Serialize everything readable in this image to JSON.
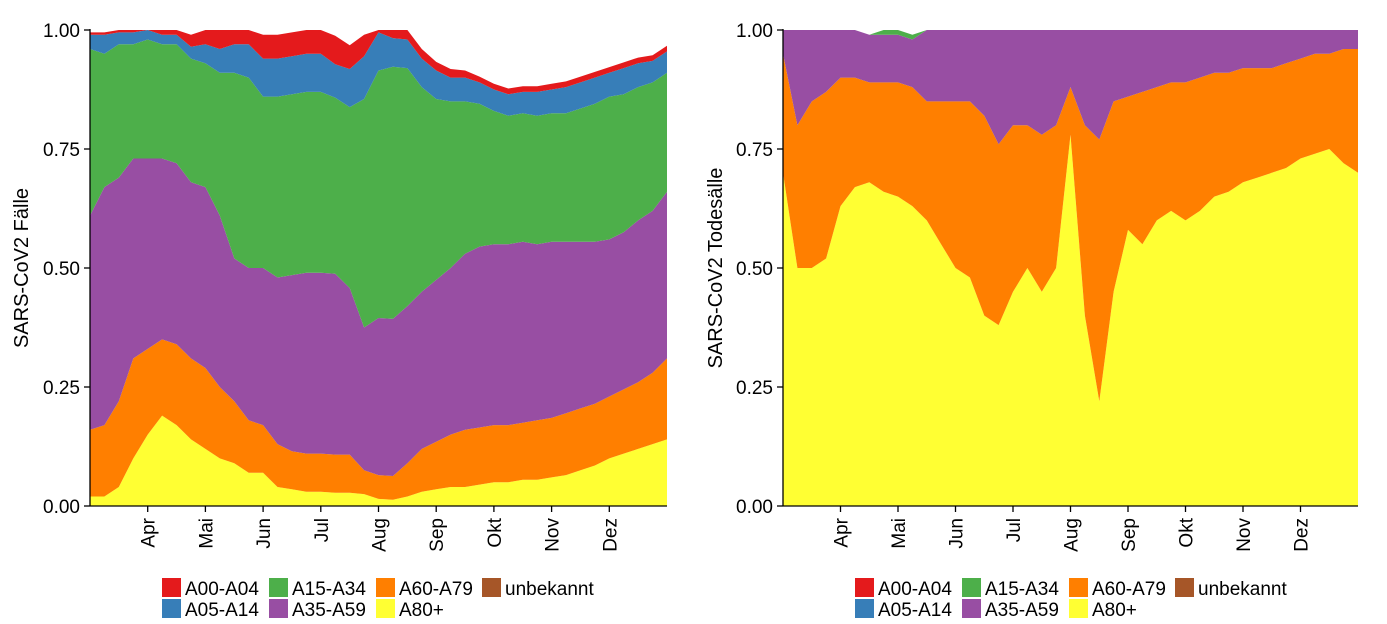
{
  "colors": {
    "A00-A04": "#e41a1c",
    "A05-A14": "#377eb8",
    "A15-A34": "#4daf4a",
    "A35-A59": "#984ea3",
    "A60-A79": "#ff7f00",
    "A80+": "#ffff33",
    "unbekannt": "#a65628"
  },
  "chart_data": [
    {
      "type": "area",
      "stacking": "fill",
      "ylabel": "SARS-CoV2 Fälle",
      "xlabel": "",
      "ylim": [
        0,
        1
      ],
      "yticks": [
        "0.00",
        "0.25",
        "0.50",
        "0.75",
        "1.00"
      ],
      "ytick_values": [
        0,
        0.25,
        0.5,
        0.75,
        1
      ],
      "xticks": [
        "Apr",
        "Mai",
        "Jun",
        "Jul",
        "Aug",
        "Sep",
        "Okt",
        "Nov",
        "Dez"
      ],
      "xtick_positions": [
        1,
        2,
        3,
        4,
        5,
        6,
        7,
        8,
        9
      ],
      "xlim": [
        0,
        10
      ],
      "x": [
        0,
        0.25,
        0.5,
        0.75,
        1,
        1.25,
        1.5,
        1.75,
        2,
        2.25,
        2.5,
        2.75,
        3,
        3.25,
        3.5,
        3.75,
        4,
        4.25,
        4.5,
        4.75,
        5,
        5.25,
        5.5,
        5.75,
        6,
        6.25,
        6.5,
        6.75,
        7,
        7.25,
        7.5,
        7.75,
        8,
        8.25,
        8.5,
        8.75,
        9,
        9.25,
        9.5,
        9.75,
        10
      ],
      "series": [
        {
          "name": "A80+",
          "values": [
            0.02,
            0.02,
            0.04,
            0.1,
            0.15,
            0.19,
            0.17,
            0.14,
            0.12,
            0.1,
            0.09,
            0.07,
            0.07,
            0.04,
            0.035,
            0.03,
            0.03,
            0.028,
            0.028,
            0.025,
            0.015,
            0.013,
            0.02,
            0.03,
            0.035,
            0.04,
            0.04,
            0.045,
            0.05,
            0.05,
            0.055,
            0.055,
            0.06,
            0.065,
            0.075,
            0.085,
            0.1,
            0.11,
            0.12,
            0.13,
            0.14
          ]
        },
        {
          "name": "A60-A79",
          "values": [
            0.14,
            0.15,
            0.18,
            0.21,
            0.18,
            0.16,
            0.17,
            0.17,
            0.17,
            0.15,
            0.13,
            0.11,
            0.1,
            0.09,
            0.08,
            0.08,
            0.08,
            0.08,
            0.08,
            0.05,
            0.05,
            0.05,
            0.07,
            0.09,
            0.1,
            0.11,
            0.12,
            0.12,
            0.12,
            0.12,
            0.12,
            0.125,
            0.125,
            0.13,
            0.13,
            0.13,
            0.13,
            0.135,
            0.14,
            0.15,
            0.17
          ]
        },
        {
          "name": "A35-A59",
          "values": [
            0.45,
            0.5,
            0.47,
            0.42,
            0.4,
            0.38,
            0.38,
            0.37,
            0.38,
            0.36,
            0.3,
            0.32,
            0.33,
            0.35,
            0.37,
            0.38,
            0.38,
            0.38,
            0.35,
            0.3,
            0.33,
            0.33,
            0.33,
            0.33,
            0.34,
            0.35,
            0.37,
            0.38,
            0.38,
            0.38,
            0.38,
            0.37,
            0.37,
            0.36,
            0.35,
            0.34,
            0.33,
            0.33,
            0.34,
            0.34,
            0.35
          ]
        },
        {
          "name": "A15-A34",
          "values": [
            0.35,
            0.28,
            0.28,
            0.24,
            0.25,
            0.24,
            0.25,
            0.26,
            0.26,
            0.3,
            0.39,
            0.4,
            0.36,
            0.38,
            0.38,
            0.38,
            0.38,
            0.37,
            0.38,
            0.48,
            0.52,
            0.53,
            0.5,
            0.43,
            0.38,
            0.35,
            0.32,
            0.3,
            0.28,
            0.27,
            0.27,
            0.27,
            0.27,
            0.27,
            0.28,
            0.29,
            0.3,
            0.29,
            0.28,
            0.27,
            0.25
          ]
        },
        {
          "name": "A05-A14",
          "values": [
            0.03,
            0.04,
            0.025,
            0.025,
            0.02,
            0.02,
            0.02,
            0.025,
            0.04,
            0.05,
            0.06,
            0.07,
            0.08,
            0.08,
            0.08,
            0.08,
            0.08,
            0.07,
            0.08,
            0.09,
            0.08,
            0.06,
            0.06,
            0.06,
            0.06,
            0.05,
            0.05,
            0.045,
            0.045,
            0.045,
            0.045,
            0.05,
            0.05,
            0.055,
            0.055,
            0.055,
            0.05,
            0.055,
            0.05,
            0.045,
            0.045
          ]
        },
        {
          "name": "A00-A04",
          "values": [
            0.005,
            0.005,
            0.005,
            0.005,
            0.005,
            0.01,
            0.01,
            0.025,
            0.03,
            0.04,
            0.045,
            0.05,
            0.05,
            0.05,
            0.05,
            0.05,
            0.05,
            0.06,
            0.05,
            0.045,
            0.035,
            0.03,
            0.025,
            0.02,
            0.018,
            0.018,
            0.015,
            0.012,
            0.012,
            0.012,
            0.012,
            0.012,
            0.012,
            0.012,
            0.012,
            0.012,
            0.012,
            0.012,
            0.012,
            0.012,
            0.012
          ]
        },
        {
          "name": "unbekannt",
          "values": [
            0,
            0,
            0,
            0,
            0,
            0,
            0,
            0,
            0,
            0,
            0,
            0,
            0,
            0,
            0,
            0,
            0,
            0,
            0,
            0,
            0,
            0,
            0,
            0,
            0,
            0,
            0,
            0,
            0,
            0,
            0,
            0,
            0,
            0,
            0,
            0,
            0,
            0,
            0,
            0,
            0
          ]
        }
      ]
    },
    {
      "type": "area",
      "stacking": "fill",
      "ylabel": "SARS-CoV2 Todesälle",
      "xlabel": "",
      "ylim": [
        0,
        1
      ],
      "yticks": [
        "0.00",
        "0.25",
        "0.50",
        "0.75",
        "1.00"
      ],
      "ytick_values": [
        0,
        0.25,
        0.5,
        0.75,
        1
      ],
      "xticks": [
        "Apr",
        "Mai",
        "Jun",
        "Jul",
        "Aug",
        "Sep",
        "Okt",
        "Nov",
        "Dez"
      ],
      "xtick_positions": [
        1,
        2,
        3,
        4,
        5,
        6,
        7,
        8,
        9
      ],
      "xlim": [
        0,
        10
      ],
      "x": [
        0,
        0.25,
        0.5,
        0.75,
        1,
        1.25,
        1.5,
        1.75,
        2,
        2.25,
        2.5,
        2.75,
        3,
        3.25,
        3.5,
        3.75,
        4,
        4.25,
        4.5,
        4.75,
        5,
        5.25,
        5.5,
        5.75,
        6,
        6.25,
        6.5,
        6.75,
        7,
        7.25,
        7.5,
        7.75,
        8,
        8.25,
        8.5,
        8.75,
        9,
        9.25,
        9.5,
        9.75,
        10
      ],
      "series": [
        {
          "name": "A80+",
          "values": [
            0.7,
            0.5,
            0.5,
            0.52,
            0.63,
            0.67,
            0.68,
            0.66,
            0.65,
            0.63,
            0.6,
            0.55,
            0.5,
            0.48,
            0.4,
            0.38,
            0.45,
            0.5,
            0.45,
            0.5,
            0.78,
            0.4,
            0.22,
            0.45,
            0.58,
            0.55,
            0.6,
            0.62,
            0.6,
            0.62,
            0.65,
            0.66,
            0.68,
            0.69,
            0.7,
            0.71,
            0.73,
            0.74,
            0.75,
            0.72,
            0.7
          ]
        },
        {
          "name": "A60-A79",
          "values": [
            0.25,
            0.3,
            0.35,
            0.35,
            0.27,
            0.23,
            0.21,
            0.23,
            0.24,
            0.25,
            0.25,
            0.3,
            0.35,
            0.37,
            0.42,
            0.38,
            0.35,
            0.3,
            0.33,
            0.3,
            0.1,
            0.4,
            0.55,
            0.4,
            0.28,
            0.32,
            0.28,
            0.27,
            0.29,
            0.28,
            0.26,
            0.25,
            0.24,
            0.23,
            0.22,
            0.22,
            0.21,
            0.21,
            0.2,
            0.24,
            0.26
          ]
        },
        {
          "name": "A35-A59",
          "values": [
            0.05,
            0.2,
            0.15,
            0.13,
            0.1,
            0.1,
            0.1,
            0.1,
            0.1,
            0.1,
            0.15,
            0.15,
            0.15,
            0.15,
            0.18,
            0.24,
            0.2,
            0.2,
            0.22,
            0.2,
            0.12,
            0.2,
            0.23,
            0.15,
            0.14,
            0.13,
            0.12,
            0.11,
            0.11,
            0.1,
            0.09,
            0.09,
            0.08,
            0.08,
            0.08,
            0.07,
            0.06,
            0.05,
            0.05,
            0.04,
            0.04
          ]
        },
        {
          "name": "A15-A34",
          "values": [
            0,
            0,
            0,
            0,
            0,
            0,
            0,
            0.01,
            0.01,
            0.01,
            0,
            0,
            0,
            0,
            0,
            0,
            0,
            0,
            0,
            0,
            0,
            0,
            0,
            0,
            0,
            0,
            0,
            0,
            0,
            0,
            0,
            0,
            0,
            0,
            0,
            0,
            0,
            0,
            0,
            0,
            0
          ]
        },
        {
          "name": "A05-A14",
          "values": [
            0,
            0,
            0,
            0,
            0,
            0,
            0,
            0,
            0,
            0,
            0,
            0,
            0,
            0,
            0,
            0,
            0,
            0,
            0,
            0,
            0,
            0,
            0,
            0,
            0,
            0,
            0,
            0,
            0,
            0,
            0,
            0,
            0,
            0,
            0,
            0,
            0,
            0,
            0,
            0,
            0
          ]
        },
        {
          "name": "A00-A04",
          "values": [
            0,
            0,
            0,
            0,
            0,
            0,
            0,
            0,
            0,
            0,
            0,
            0,
            0,
            0,
            0,
            0,
            0,
            0,
            0,
            0,
            0,
            0,
            0,
            0,
            0,
            0,
            0,
            0,
            0,
            0,
            0,
            0,
            0,
            0,
            0,
            0,
            0,
            0,
            0,
            0,
            0
          ]
        },
        {
          "name": "unbekannt",
          "values": [
            0,
            0,
            0,
            0,
            0,
            0,
            0,
            0,
            0,
            0,
            0,
            0,
            0,
            0,
            0,
            0,
            0,
            0,
            0,
            0,
            0,
            0,
            0,
            0,
            0,
            0,
            0,
            0,
            0,
            0,
            0,
            0,
            0,
            0,
            0,
            0,
            0,
            0,
            0,
            0,
            0
          ]
        }
      ]
    }
  ],
  "legend": {
    "items": [
      "A00-A04",
      "A05-A14",
      "A15-A34",
      "A35-A59",
      "A60-A79",
      "A80+",
      "unbekannt"
    ],
    "placement": "bottom"
  }
}
